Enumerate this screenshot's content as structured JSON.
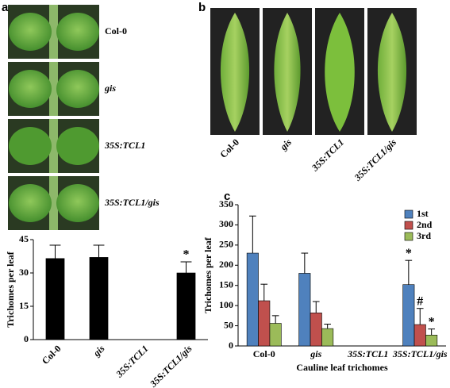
{
  "panel_labels": [
    "a",
    "b",
    "c"
  ],
  "seedling_labels": [
    "Col-0",
    "gis",
    "35S:TCL1",
    "35S:TCL1/gis"
  ],
  "leaf_labels": [
    "Col-0",
    "gis",
    "35S:TCL1",
    "35S:TCL1/gis"
  ],
  "chart_data": [
    {
      "type": "bar",
      "y_label": "Trichomes per leaf",
      "categories": [
        "Col-0",
        "gis",
        "35S:TCL1",
        "35S:TCL1/gis"
      ],
      "series": [
        {
          "color": "#000000",
          "values": [
            36.5,
            37,
            0,
            30
          ],
          "errors": [
            6,
            5.5,
            null,
            5
          ],
          "markers": [
            null,
            null,
            null,
            "*"
          ]
        }
      ],
      "ylim": [
        0,
        45
      ],
      "yticks": [
        0,
        15,
        30,
        45
      ]
    },
    {
      "type": "bar",
      "y_label": "Trichomes per leaf",
      "x_label": "Cauline leaf trichomes",
      "categories": [
        "Col-0",
        "gis",
        "35S:TCL1",
        "35S:TCL1/gis"
      ],
      "series": [
        {
          "name": "1st",
          "color": "#4f81bd",
          "values": [
            230,
            180,
            0,
            152
          ],
          "errors": [
            92,
            50,
            null,
            60
          ],
          "markers": [
            null,
            null,
            null,
            "*"
          ]
        },
        {
          "name": "2nd",
          "color": "#c0504d",
          "values": [
            112,
            82,
            0,
            53
          ],
          "errors": [
            41,
            28,
            null,
            40
          ],
          "markers": [
            null,
            null,
            null,
            "#"
          ]
        },
        {
          "name": "3rd",
          "color": "#9bbb59",
          "values": [
            56,
            43,
            0,
            27
          ],
          "errors": [
            19,
            11,
            null,
            15
          ],
          "markers": [
            null,
            null,
            null,
            "*"
          ]
        }
      ],
      "ylim": [
        0,
        350
      ],
      "yticks": [
        0,
        50,
        100,
        150,
        200,
        250,
        300,
        350
      ],
      "legend": "top-right"
    }
  ]
}
